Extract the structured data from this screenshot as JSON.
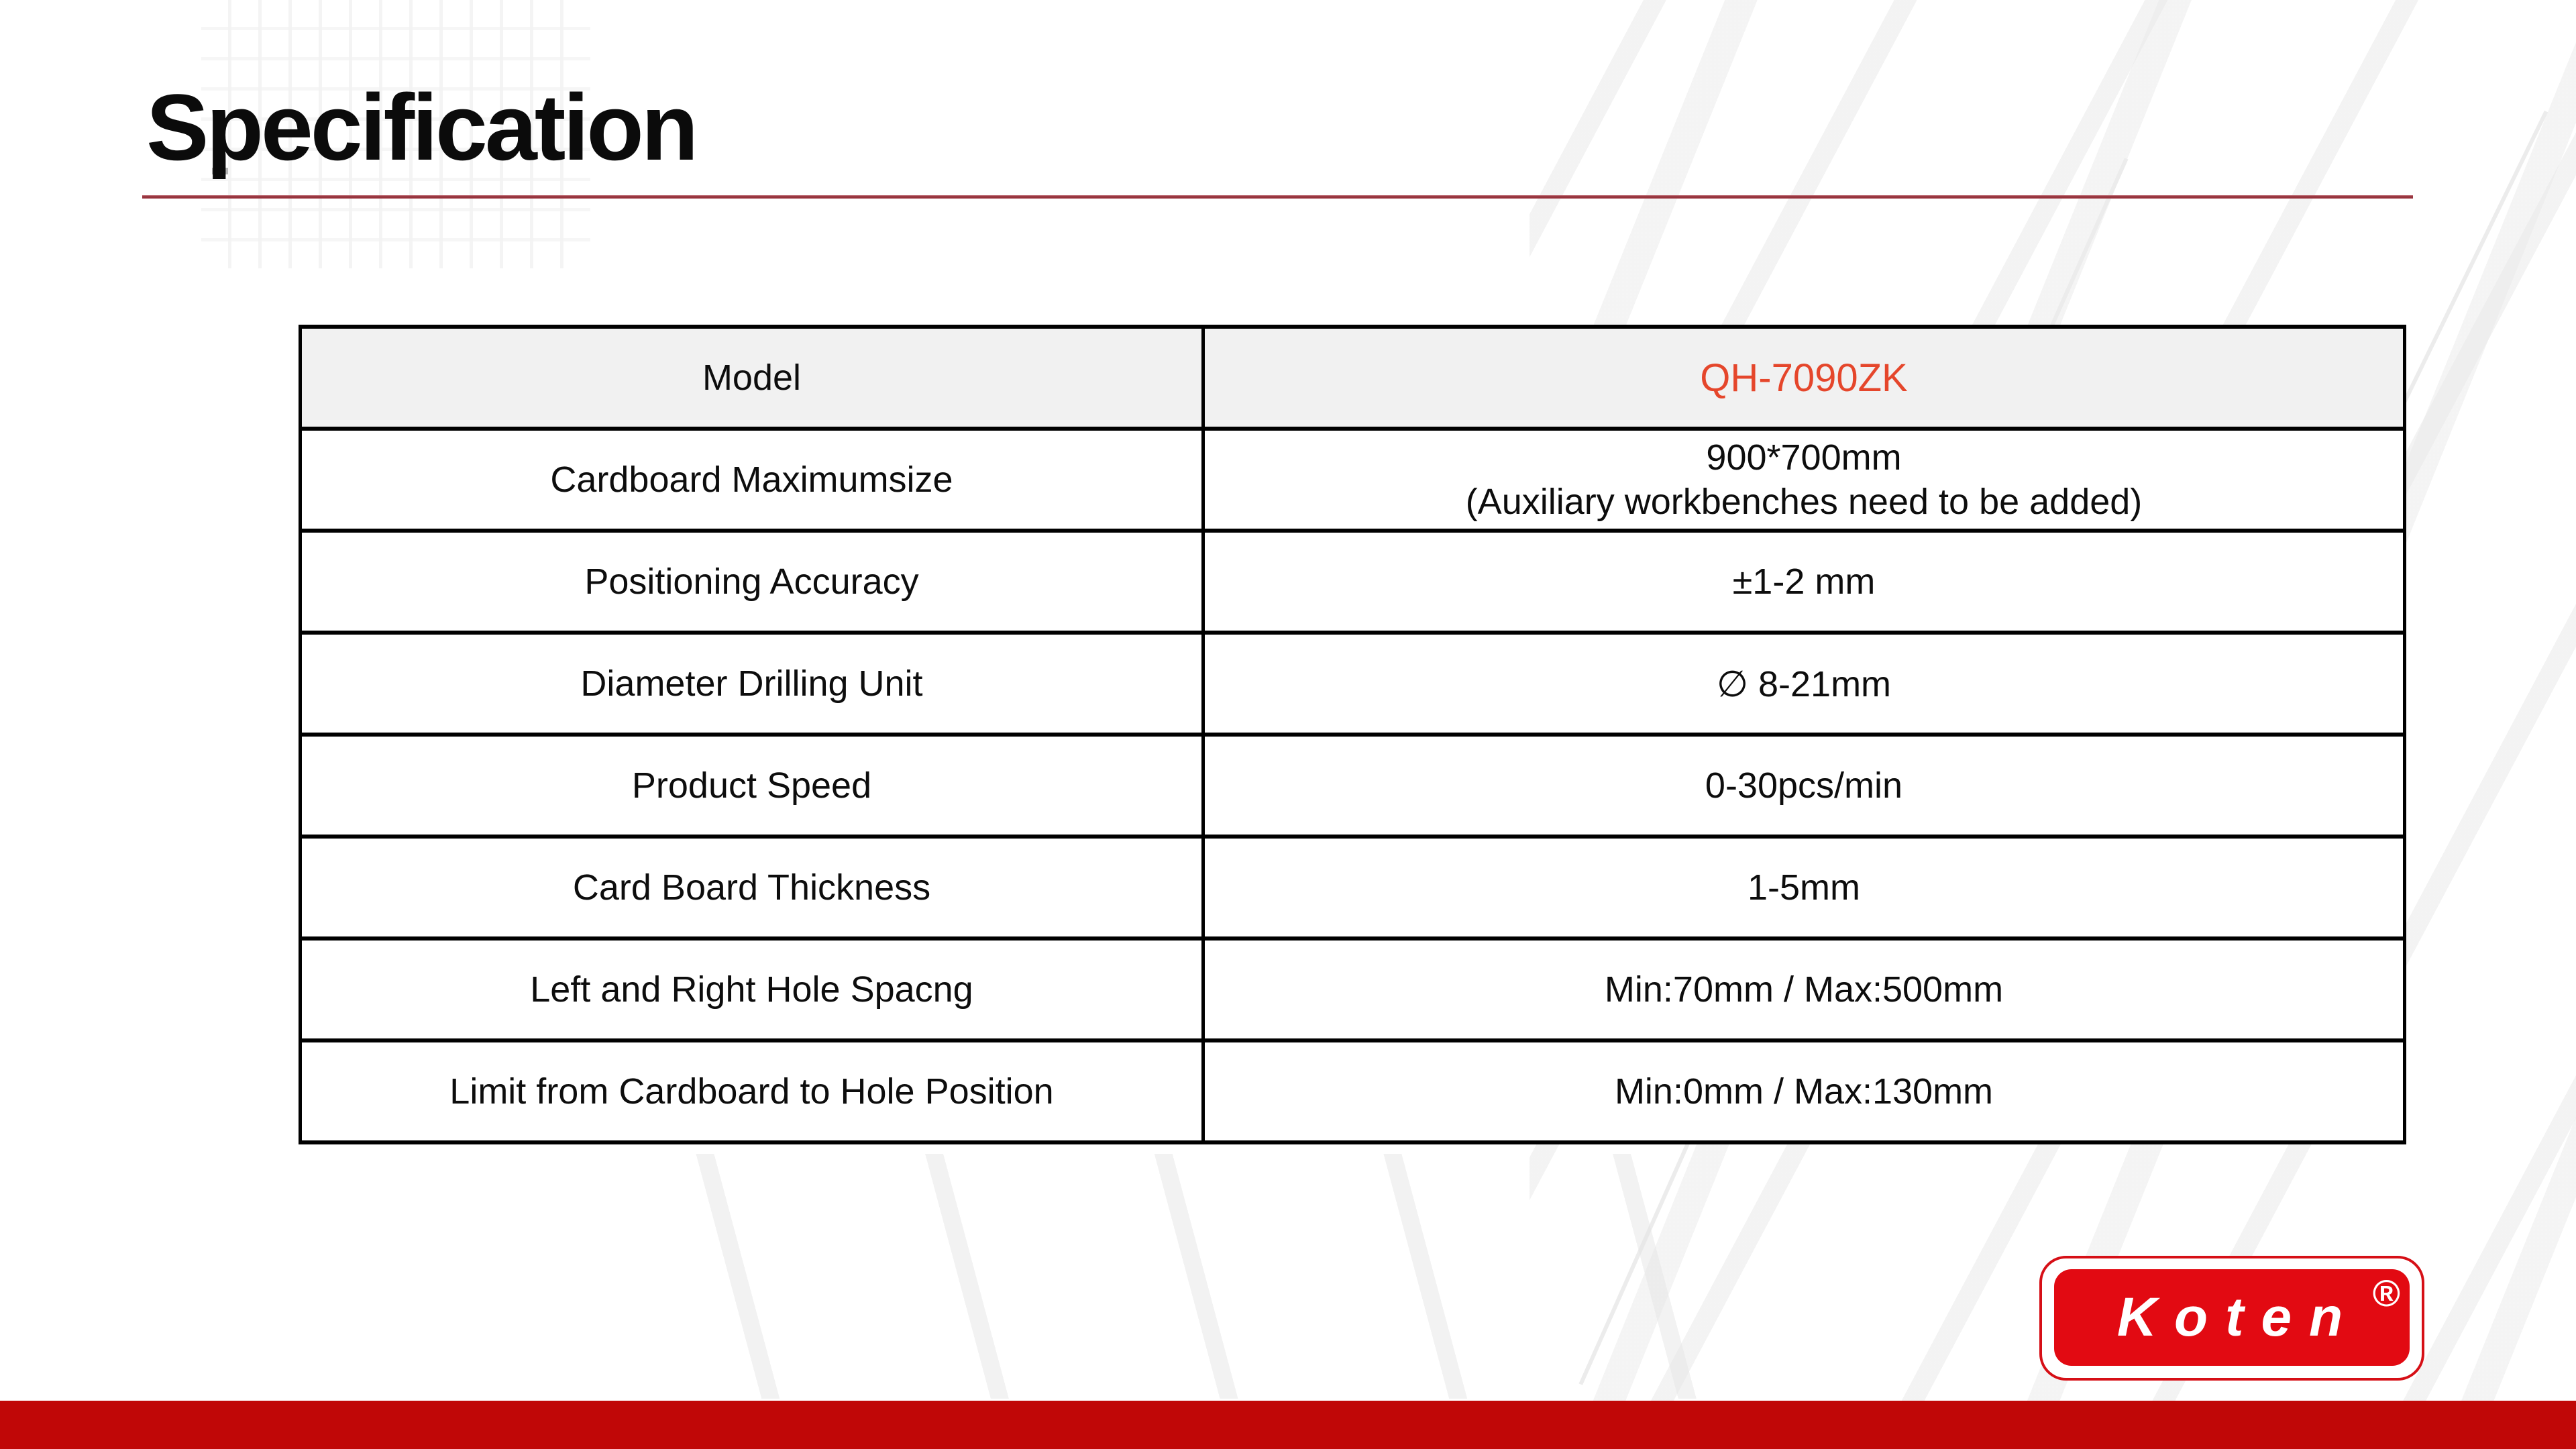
{
  "slide": {
    "title": "Specification"
  },
  "colors": {
    "title_text": "#0b0b0b",
    "title_rule_red": "#8f2a33",
    "table_border": "#000000",
    "header_row_bg": "#f1f1f1",
    "model_value_orange": "#e5462b",
    "logo_red": "#e20a12",
    "bottom_bar_red": "#c00707"
  },
  "table": {
    "header": {
      "label": "Model",
      "value": "QH-7090ZK"
    },
    "rows": [
      {
        "label": "Cardboard Maximumsize",
        "value": "900*700mm",
        "value2": "(Auxiliary workbenches need to be added)"
      },
      {
        "label": "Positioning Accuracy",
        "value": "±1-2 mm"
      },
      {
        "label": "Diameter Drilling Unit",
        "value": "∅ 8-21mm"
      },
      {
        "label": "Product Speed",
        "value": "0-30pcs/min"
      },
      {
        "label": "Card Board Thickness",
        "value": "1-5mm"
      },
      {
        "label": "Left and Right Hole Spacng",
        "value": "Min:70mm / Max:500mm"
      },
      {
        "label": "Limit from Cardboard to Hole Position",
        "value": "Min:0mm / Max:130mm"
      }
    ]
  },
  "logo": {
    "brand": "Koten",
    "registered_mark": "®"
  }
}
